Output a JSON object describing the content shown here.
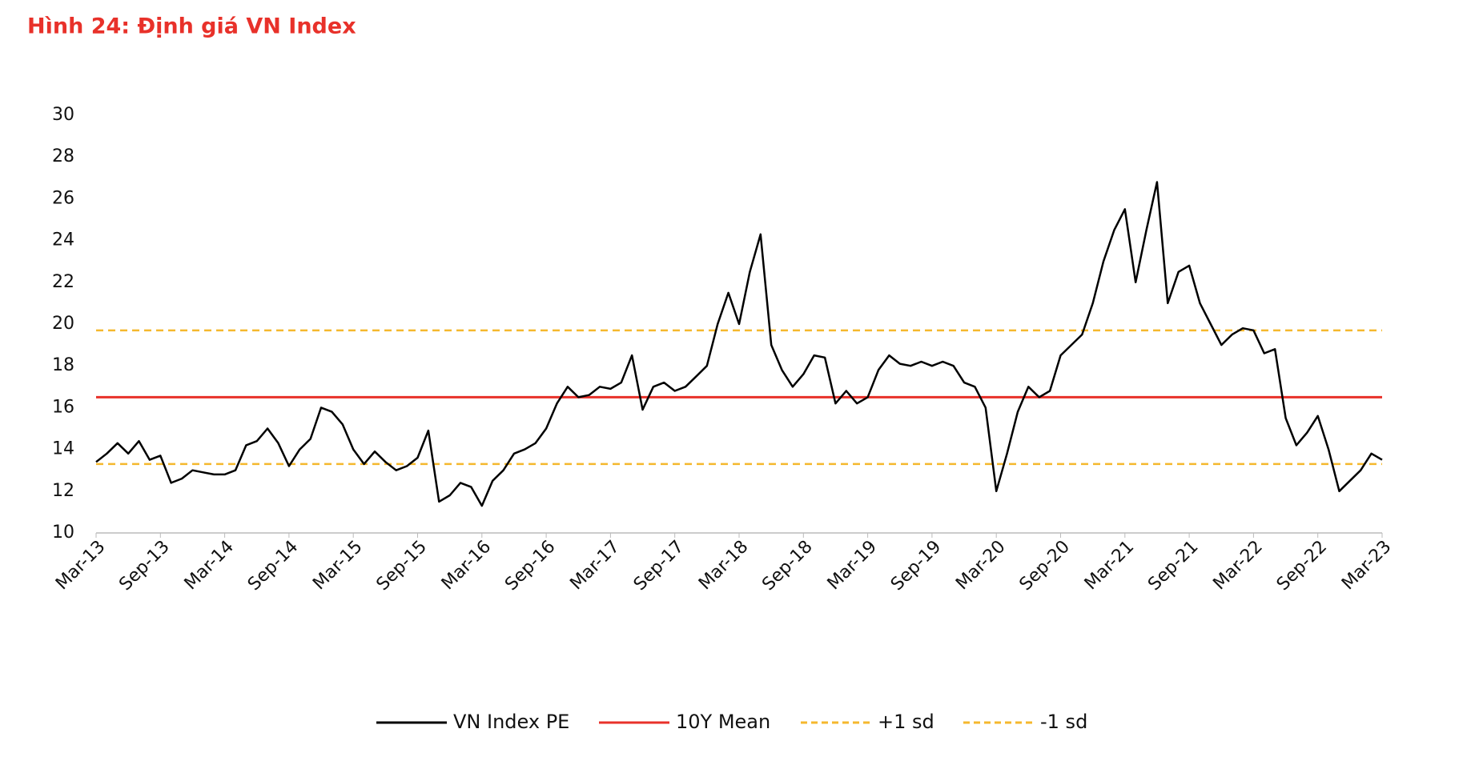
{
  "chart_data": {
    "type": "line",
    "title": "Hình 24: Định giá VN Index",
    "categories": [
      "Mar-13",
      null,
      null,
      null,
      null,
      null,
      "Sep-13",
      null,
      null,
      null,
      null,
      null,
      "Mar-14",
      null,
      null,
      null,
      null,
      null,
      "Sep-14",
      null,
      null,
      null,
      null,
      null,
      "Mar-15",
      null,
      null,
      null,
      null,
      null,
      "Sep-15",
      null,
      null,
      null,
      null,
      null,
      "Mar-16",
      null,
      null,
      null,
      null,
      null,
      "Sep-16",
      null,
      null,
      null,
      null,
      null,
      "Mar-17",
      null,
      null,
      null,
      null,
      null,
      "Sep-17",
      null,
      null,
      null,
      null,
      null,
      "Mar-18",
      null,
      null,
      null,
      null,
      null,
      "Sep-18",
      null,
      null,
      null,
      null,
      null,
      "Mar-19",
      null,
      null,
      null,
      null,
      null,
      "Sep-19",
      null,
      null,
      null,
      null,
      null,
      "Mar-20",
      null,
      null,
      null,
      null,
      null,
      "Sep-20",
      null,
      null,
      null,
      null,
      null,
      "Mar-21",
      null,
      null,
      null,
      null,
      null,
      "Sep-21",
      null,
      null,
      null,
      null,
      null,
      "Mar-22",
      null,
      null,
      null,
      null,
      null,
      "Sep-22",
      null,
      null,
      null,
      null,
      null,
      "Mar-23"
    ],
    "series": [
      {
        "name": "VN Index PE",
        "color": "#000000",
        "values": [
          13.4,
          13.8,
          14.3,
          13.8,
          14.4,
          13.5,
          13.7,
          12.4,
          12.6,
          13.0,
          12.9,
          12.8,
          12.8,
          13.0,
          14.2,
          14.4,
          15.0,
          14.3,
          13.2,
          14.0,
          14.5,
          16.0,
          15.8,
          15.2,
          14.0,
          13.3,
          13.9,
          13.4,
          13.0,
          13.2,
          13.6,
          14.9,
          11.5,
          11.8,
          12.4,
          12.2,
          11.3,
          12.5,
          13.0,
          13.8,
          14.0,
          14.3,
          15.0,
          16.2,
          17.0,
          16.5,
          16.6,
          17.0,
          16.9,
          17.2,
          18.5,
          15.9,
          17.0,
          17.2,
          16.8,
          17.0,
          17.5,
          18.0,
          20.0,
          21.5,
          20.0,
          22.5,
          24.3,
          19.0,
          17.8,
          17.0,
          17.6,
          18.5,
          18.4,
          16.2,
          16.8,
          16.2,
          16.5,
          17.8,
          18.5,
          18.1,
          18.0,
          18.2,
          18.0,
          18.2,
          18.0,
          17.2,
          17.0,
          16.0,
          12.0,
          13.8,
          15.8,
          17.0,
          16.5,
          16.8,
          18.5,
          19.0,
          19.5,
          21.0,
          23.0,
          24.5,
          25.5,
          22.0,
          24.5,
          26.8,
          21.0,
          22.5,
          22.8,
          21.0,
          20.0,
          19.0,
          19.5,
          19.8,
          19.7,
          18.6,
          18.8,
          15.5,
          14.2,
          14.8,
          15.6,
          14.0,
          12.0,
          12.5,
          13.0,
          13.8,
          13.5
        ]
      }
    ],
    "reference_lines": [
      {
        "name": "10Y Mean",
        "color": "#e8312a",
        "value": 16.5,
        "dashed": false
      },
      {
        "name": "+1 sd",
        "color": "#f5b82e",
        "value": 19.7,
        "dashed": true
      },
      {
        "name": "-1 sd",
        "color": "#f5b82e",
        "value": 13.3,
        "dashed": true
      }
    ],
    "ylim": [
      10,
      30
    ],
    "yticks": [
      10,
      12,
      14,
      16,
      18,
      20,
      22,
      24,
      26,
      28,
      30
    ],
    "grid": false
  }
}
